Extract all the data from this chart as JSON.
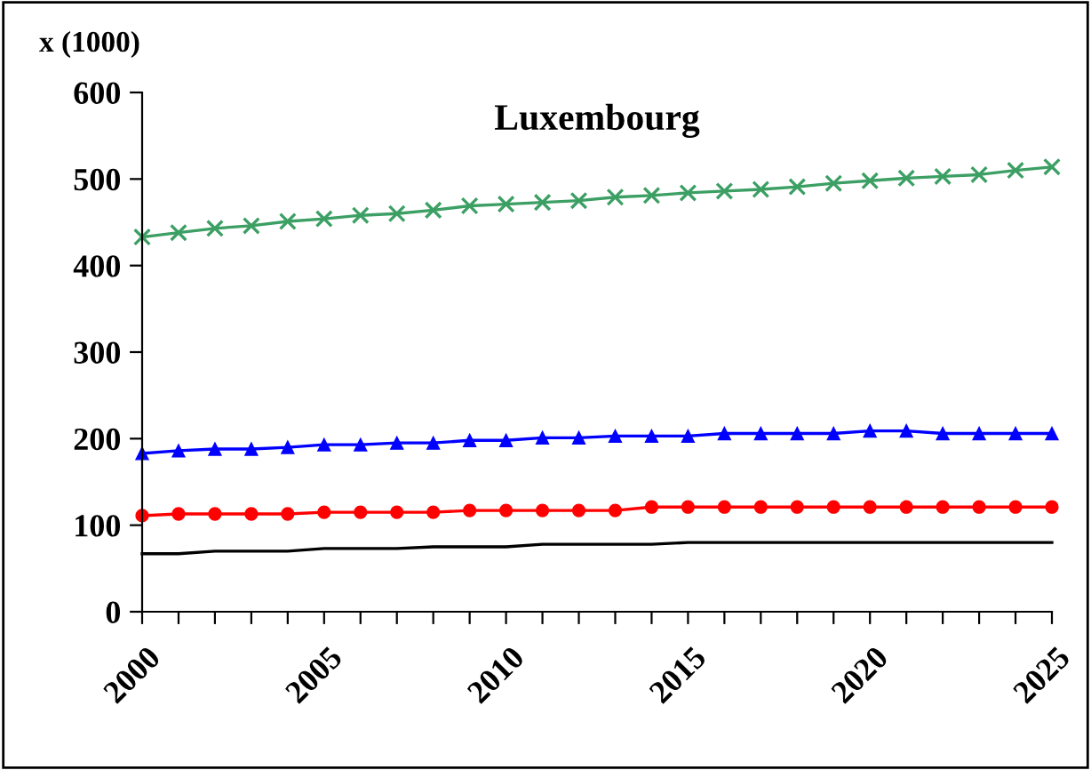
{
  "chart_data": {
    "type": "line",
    "title": "Luxembourg",
    "ylabel": "x (1000)",
    "x": [
      2000,
      2001,
      2002,
      2003,
      2004,
      2005,
      2006,
      2007,
      2008,
      2009,
      2010,
      2011,
      2012,
      2013,
      2014,
      2015,
      2016,
      2017,
      2018,
      2019,
      2020,
      2021,
      2022,
      2023,
      2024,
      2025
    ],
    "series": [
      {
        "color": "#3c9f64",
        "marker": "cross",
        "values": [
          433,
          438,
          443,
          446,
          451,
          454,
          458,
          460,
          464,
          469,
          471,
          473,
          475,
          479,
          481,
          484,
          486,
          488,
          491,
          495,
          498,
          501,
          503,
          505,
          510,
          514
        ]
      },
      {
        "color": "#0000ff",
        "marker": "triangle",
        "values": [
          183,
          186,
          188,
          188,
          190,
          193,
          193,
          195,
          195,
          198,
          198,
          201,
          201,
          203,
          203,
          203,
          206,
          206,
          206,
          206,
          209,
          209,
          206,
          206,
          206,
          206
        ]
      },
      {
        "color": "#ff0000",
        "marker": "circle",
        "values": [
          111,
          113,
          113,
          113,
          113,
          115,
          115,
          115,
          115,
          117,
          117,
          117,
          117,
          117,
          121,
          121,
          121,
          121,
          121,
          121,
          121,
          121,
          121,
          121,
          121,
          121
        ]
      },
      {
        "color": "#000000",
        "marker": "none",
        "values": [
          67,
          67,
          70,
          70,
          70,
          73,
          73,
          73,
          75,
          75,
          75,
          78,
          78,
          78,
          78,
          80,
          80,
          80,
          80,
          80,
          80,
          80,
          80,
          80,
          80,
          80
        ]
      }
    ],
    "xlim": [
      2000,
      2025
    ],
    "xticks": [
      2000,
      {
        "value": 2001,
        "label": null
      },
      {
        "value": 2002,
        "label": null
      },
      {
        "value": 2003,
        "label": null
      },
      {
        "value": 2004,
        "label": null
      },
      2005,
      {
        "value": 2006,
        "label": null
      },
      {
        "value": 2007,
        "label": null
      },
      {
        "value": 2008,
        "label": null
      },
      {
        "value": 2009,
        "label": null
      },
      2010,
      {
        "value": 2011,
        "label": null
      },
      {
        "value": 2012,
        "label": null
      },
      {
        "value": 2013,
        "label": null
      },
      {
        "value": 2014,
        "label": null
      },
      2015,
      {
        "value": 2016,
        "label": null
      },
      {
        "value": 2017,
        "label": null
      },
      {
        "value": 2018,
        "label": null
      },
      {
        "value": 2019,
        "label": null
      },
      2020,
      {
        "value": 2021,
        "label": null
      },
      {
        "value": 2022,
        "label": null
      },
      {
        "value": 2023,
        "label": null
      },
      {
        "value": 2024,
        "label": null
      },
      2025
    ],
    "ylim": [
      0,
      600
    ],
    "yticks": [
      0,
      100,
      200,
      300,
      400,
      500,
      600
    ],
    "grid": false,
    "legend": false,
    "line_style": "solid"
  }
}
